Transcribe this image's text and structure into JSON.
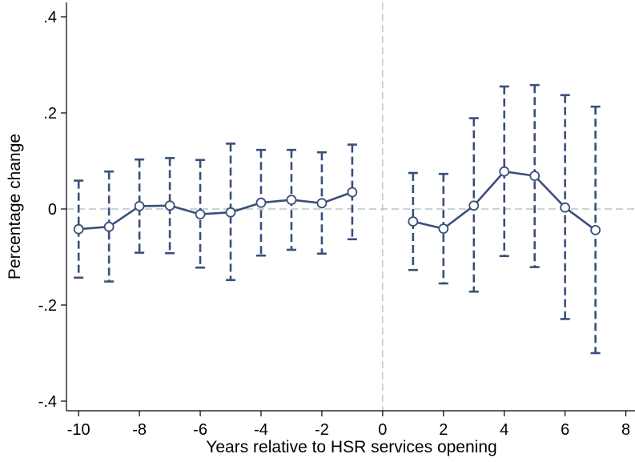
{
  "chart_data": {
    "type": "scatter",
    "title": "",
    "xlabel": "Years relative to HSR services opening",
    "ylabel": "Percentage change",
    "xlim": [
      -10.4,
      8.3
    ],
    "ylim": [
      -0.42,
      0.43
    ],
    "xticks": [
      -10,
      -8,
      -6,
      -4,
      -2,
      0,
      2,
      4,
      6,
      8
    ],
    "xtick_labels": [
      "-10",
      "-8",
      "-6",
      "-4",
      "-2",
      "0",
      "2",
      "4",
      "6",
      "8"
    ],
    "yticks": [
      0.4,
      0.2,
      0,
      -0.2,
      -0.4
    ],
    "ytick_labels": [
      ".4",
      ".2",
      "0",
      "-.2",
      "-.4"
    ],
    "grid": false,
    "reference_lines": {
      "x": 0,
      "y": 0
    },
    "colors": {
      "series": "#3a4f7a",
      "reference": "#a8bcbc"
    },
    "series": [
      {
        "segment": "pre",
        "x": [
          -10,
          -9,
          -8,
          -7,
          -6,
          -5,
          -4,
          -3,
          -2,
          -1
        ],
        "y": [
          -0.042,
          -0.037,
          0.006,
          0.007,
          -0.011,
          -0.007,
          0.013,
          0.019,
          0.012,
          0.035
        ],
        "ci_low": [
          -0.143,
          -0.151,
          -0.091,
          -0.092,
          -0.122,
          -0.148,
          -0.097,
          -0.085,
          -0.093,
          -0.063
        ],
        "ci_high": [
          0.059,
          0.078,
          0.103,
          0.106,
          0.102,
          0.136,
          0.123,
          0.123,
          0.118,
          0.134
        ]
      },
      {
        "segment": "post",
        "x": [
          1,
          2,
          3,
          4,
          5,
          6,
          7
        ],
        "y": [
          -0.026,
          -0.041,
          0.007,
          0.078,
          0.069,
          0.003,
          -0.044
        ],
        "ci_low": [
          -0.127,
          -0.155,
          -0.172,
          -0.098,
          -0.121,
          -0.229,
          -0.3
        ],
        "ci_high": [
          0.075,
          0.073,
          0.189,
          0.255,
          0.258,
          0.237,
          0.213
        ]
      }
    ]
  }
}
